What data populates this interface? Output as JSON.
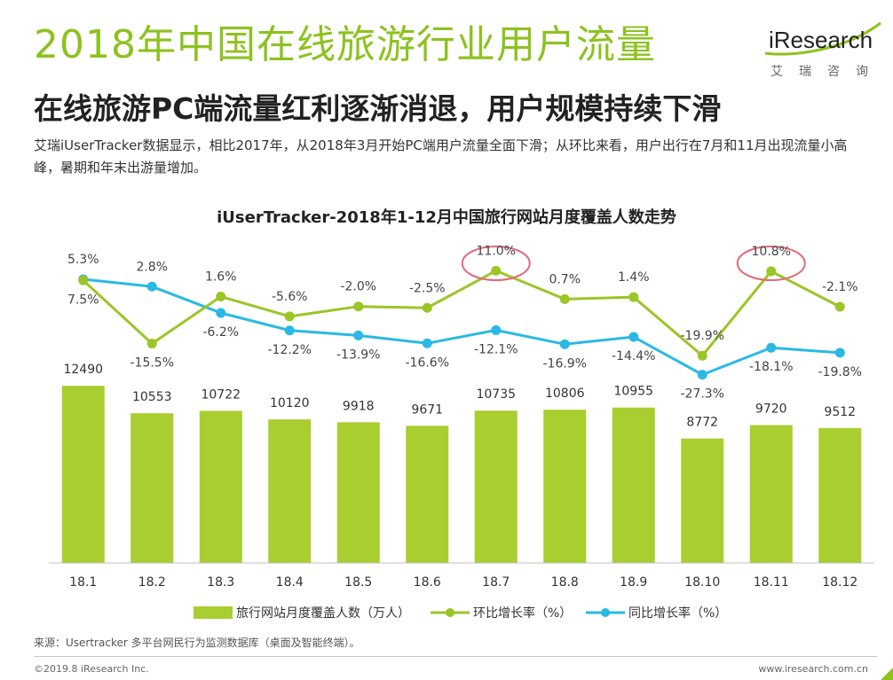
{
  "header": {
    "title": "2018年中国在线旅游行业用户流量",
    "subtitle": "在线旅游PC端流量红利逐渐消退，用户规模持续下滑",
    "description": "艾瑞iUserTracker数据显示，相比2017年，从2018年3月开始PC端用户流量全面下滑；从环比来看，用户出行在7月和11月出现流量小高峰，暑期和年末出游量增加。"
  },
  "logo": {
    "brand": "iResearch",
    "brand_cn": "艾瑞咨询"
  },
  "chart_data": {
    "type": "bar",
    "title": "iUserTracker-2018年1-12月中国旅行网站月度覆盖人数走势",
    "categories": [
      "18.1",
      "18.2",
      "18.3",
      "18.4",
      "18.5",
      "18.6",
      "18.7",
      "18.8",
      "18.9",
      "18.10",
      "18.11",
      "18.12"
    ],
    "series": [
      {
        "name": "旅行网站月度覆盖人数（万人）",
        "type": "bar",
        "color": "#a8ce2f",
        "values": [
          12490,
          10553,
          10722,
          10120,
          9918,
          9671,
          10735,
          10806,
          10955,
          8772,
          9720,
          9512
        ],
        "labels": [
          "12490",
          "10553",
          "10722",
          "10120",
          "9918",
          "9671",
          "10735",
          "10806",
          "10955",
          "8772",
          "9720",
          "9512"
        ]
      },
      {
        "name": "环比增长率（%）",
        "type": "line",
        "color": "#9cc526",
        "values": [
          7.5,
          -15.5,
          1.6,
          -5.6,
          -2.0,
          -2.5,
          11.0,
          0.7,
          1.4,
          -19.9,
          10.8,
          -2.1
        ],
        "labels": [
          "7.5%",
          "-15.5%",
          "1.6%",
          "-5.6%",
          "-2.0%",
          "-2.5%",
          "11.0%",
          "0.7%",
          "1.4%",
          "-19.9%",
          "10.8%",
          "-2.1%"
        ]
      },
      {
        "name": "同比增长率（%）",
        "type": "line",
        "color": "#29b9e4",
        "values": [
          5.3,
          2.8,
          -6.2,
          -12.2,
          -13.9,
          -16.6,
          -12.1,
          -16.9,
          -14.4,
          -27.3,
          -18.1,
          -19.8
        ],
        "labels": [
          "5.3%",
          "2.8%",
          "-6.2%",
          "-12.2%",
          "-13.9%",
          "-16.6%",
          "-12.1%",
          "-16.9%",
          "-14.4%",
          "-27.3%",
          "-18.1%",
          "-19.8%"
        ]
      }
    ],
    "highlighted": [
      "18.7",
      "18.11"
    ],
    "highlight_color": "#e06b7a",
    "legend_position": "bottom",
    "grid": false
  },
  "footer": {
    "source": "来源：Usertracker 多平台网民行为监测数据库（桌面及智能终端）。",
    "copyright": "©2019.8 iResearch Inc.",
    "website": "www.iresearch.com.cn"
  },
  "colors": {
    "accent": "#8dc21f",
    "bar": "#a8ce2f",
    "mom_line": "#9cc526",
    "yoy_line": "#29b9e4"
  }
}
